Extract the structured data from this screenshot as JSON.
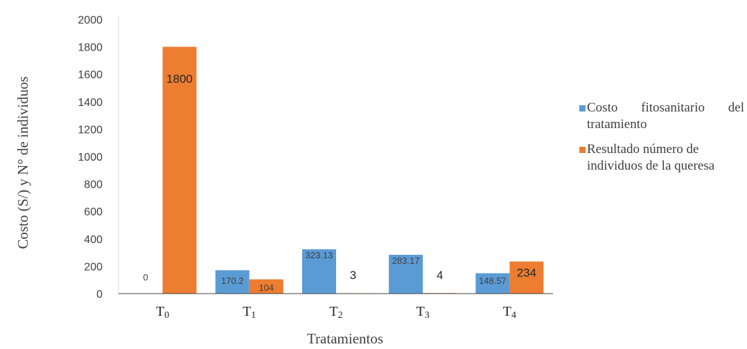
{
  "chart_data": {
    "type": "bar",
    "categories": [
      "T0",
      "T1",
      "T2",
      "T3",
      "T4"
    ],
    "category_labels": [
      {
        "base": "T",
        "sub": "0"
      },
      {
        "base": "T",
        "sub": "1"
      },
      {
        "base": "T",
        "sub": "2"
      },
      {
        "base": "T",
        "sub": "3"
      },
      {
        "base": "T",
        "sub": "4"
      }
    ],
    "series": [
      {
        "name": "Costo fitosanitario del tratamiento",
        "color": "#5B9BD5",
        "values": [
          0,
          170.2,
          323.13,
          283.17,
          148.57
        ],
        "labels": [
          "0",
          "170.2",
          "323.13",
          "283.17",
          "148.57"
        ]
      },
      {
        "name": "Resultado número de individuos de la queresa",
        "color": "#ED7D31",
        "values": [
          1800,
          104,
          3,
          4,
          234
        ],
        "labels": [
          "1800",
          "104",
          "3",
          "4",
          "234"
        ]
      }
    ],
    "xlabel": "Tratamientos",
    "ylabel": "Costo (S/) y N° de individuos",
    "ylim": [
      0,
      2000
    ],
    "yticks": [
      0,
      200,
      400,
      600,
      800,
      1000,
      1200,
      1400,
      1600,
      1800,
      2000
    ],
    "grid": false,
    "legend_position": "right"
  }
}
